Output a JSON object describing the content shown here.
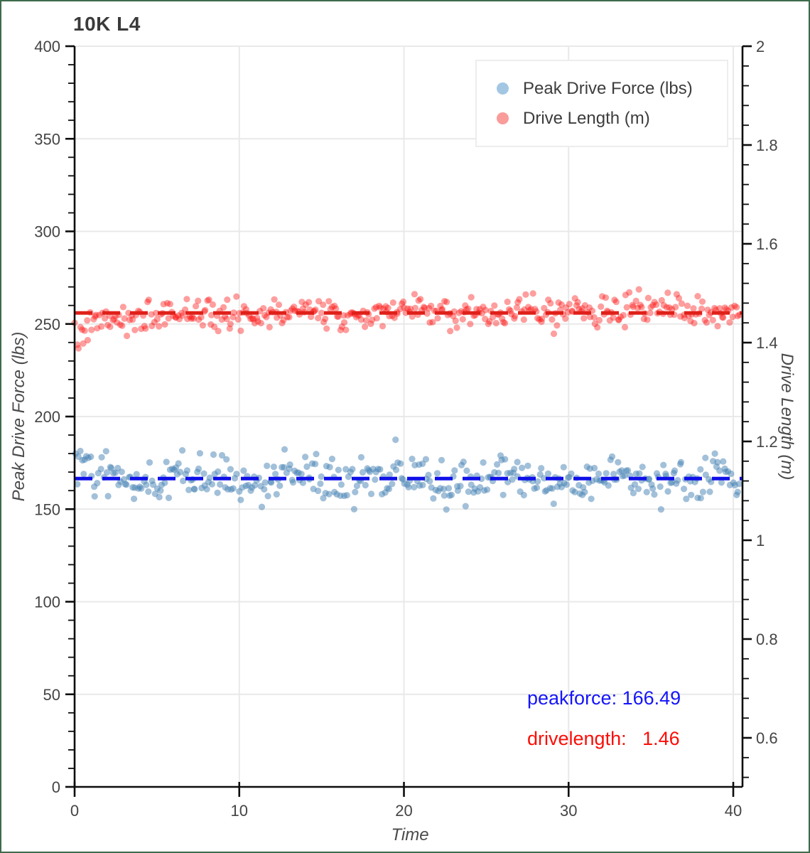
{
  "page": {
    "border_color": "#3e6b4b",
    "background": "#ffffff"
  },
  "header": {
    "title": "10K L4"
  },
  "legend": {
    "items": [
      {
        "label": "Peak Drive Force (lbs)",
        "swatch_color": "#a3c7e3"
      },
      {
        "label": "Drive Length (m)",
        "swatch_color": "#f99c9a"
      }
    ]
  },
  "axis_titles": {
    "x": "Time",
    "left": "Peak Drive Force (lbs)",
    "right": "Drive Length (m)"
  },
  "annotations": {
    "peakforce": {
      "text": "peakforce: 166.49",
      "color": "#1515fa"
    },
    "drivelength": {
      "text": "drivelength:   1.46",
      "color": "#fb0e07"
    }
  },
  "chart_data": {
    "type": "scatter",
    "title": "10K L4",
    "xlabel": "Time",
    "x_range": [
      0,
      40.5
    ],
    "x_ticks": [
      0,
      10,
      20,
      30,
      40
    ],
    "grid": true,
    "legend_position": "top-right",
    "axes": {
      "left": {
        "label": "Peak Drive Force (lbs)",
        "range": [
          0,
          400
        ],
        "major_ticks": [
          0,
          50,
          100,
          150,
          200,
          250,
          300,
          350,
          400
        ],
        "minor_step": 10
      },
      "right": {
        "label": "Drive Length (m)",
        "top_value": 2,
        "bottom_label": 0.6,
        "major_ticks": [
          0.6,
          0.8,
          1,
          1.2,
          1.4,
          1.6,
          1.8,
          2
        ],
        "minor_step": 0.04
      }
    },
    "series": [
      {
        "name": "Peak Drive Force (lbs)",
        "axis": "left",
        "mean": 166.49,
        "approx_value_range": [
          150,
          187
        ],
        "marker_color": "rgba(70,130,180,0.5)",
        "marker_radius": 4.6,
        "n_points": 400,
        "gen": {
          "seed": 42,
          "x_max": 40.45,
          "base": 166.49,
          "noise_sigma": 6.1,
          "start_bump_amp": 7.5,
          "start_bump_tau": 1.0,
          "sine_amp": 2.3,
          "sine_period": 6.4,
          "sine_phase": 0.8,
          "trend_per_t": 0,
          "clamp": [
            149,
            187.5
          ]
        }
      },
      {
        "name": "Drive Length (m)",
        "axis": "right",
        "mean": 1.46,
        "approx_value_range": [
          1.38,
          1.51
        ],
        "marker_color": "rgba(253,13,13,0.4)",
        "marker_radius": 4.6,
        "n_points": 415,
        "gen": {
          "seed": 7,
          "x_max": 40.45,
          "base": 1.4545,
          "noise_sigma": 0.0155,
          "start_bump_amp": -0.055,
          "start_bump_tau": 1.2,
          "sine_amp": 0.005,
          "sine_period": 7.2,
          "sine_phase": 2.1,
          "trend_per_t": 0.00035,
          "clamp": [
            1.376,
            1.522
          ]
        }
      }
    ],
    "mean_lines": [
      {
        "series": "Peak Drive Force (lbs)",
        "axis": "left",
        "value": 166.49,
        "color": "#0f10e8",
        "dash": [
          25,
          14
        ],
        "width": 5
      },
      {
        "series": "Drive Length (m)",
        "axis": "right",
        "value": 1.46,
        "color": "#df2019",
        "dash": [
          25,
          14
        ],
        "width": 5
      }
    ],
    "annotations": [
      {
        "text": "peakforce: 166.49",
        "color": "#1515fa"
      },
      {
        "text": "drivelength:   1.46",
        "color": "#fb0e07"
      }
    ]
  }
}
